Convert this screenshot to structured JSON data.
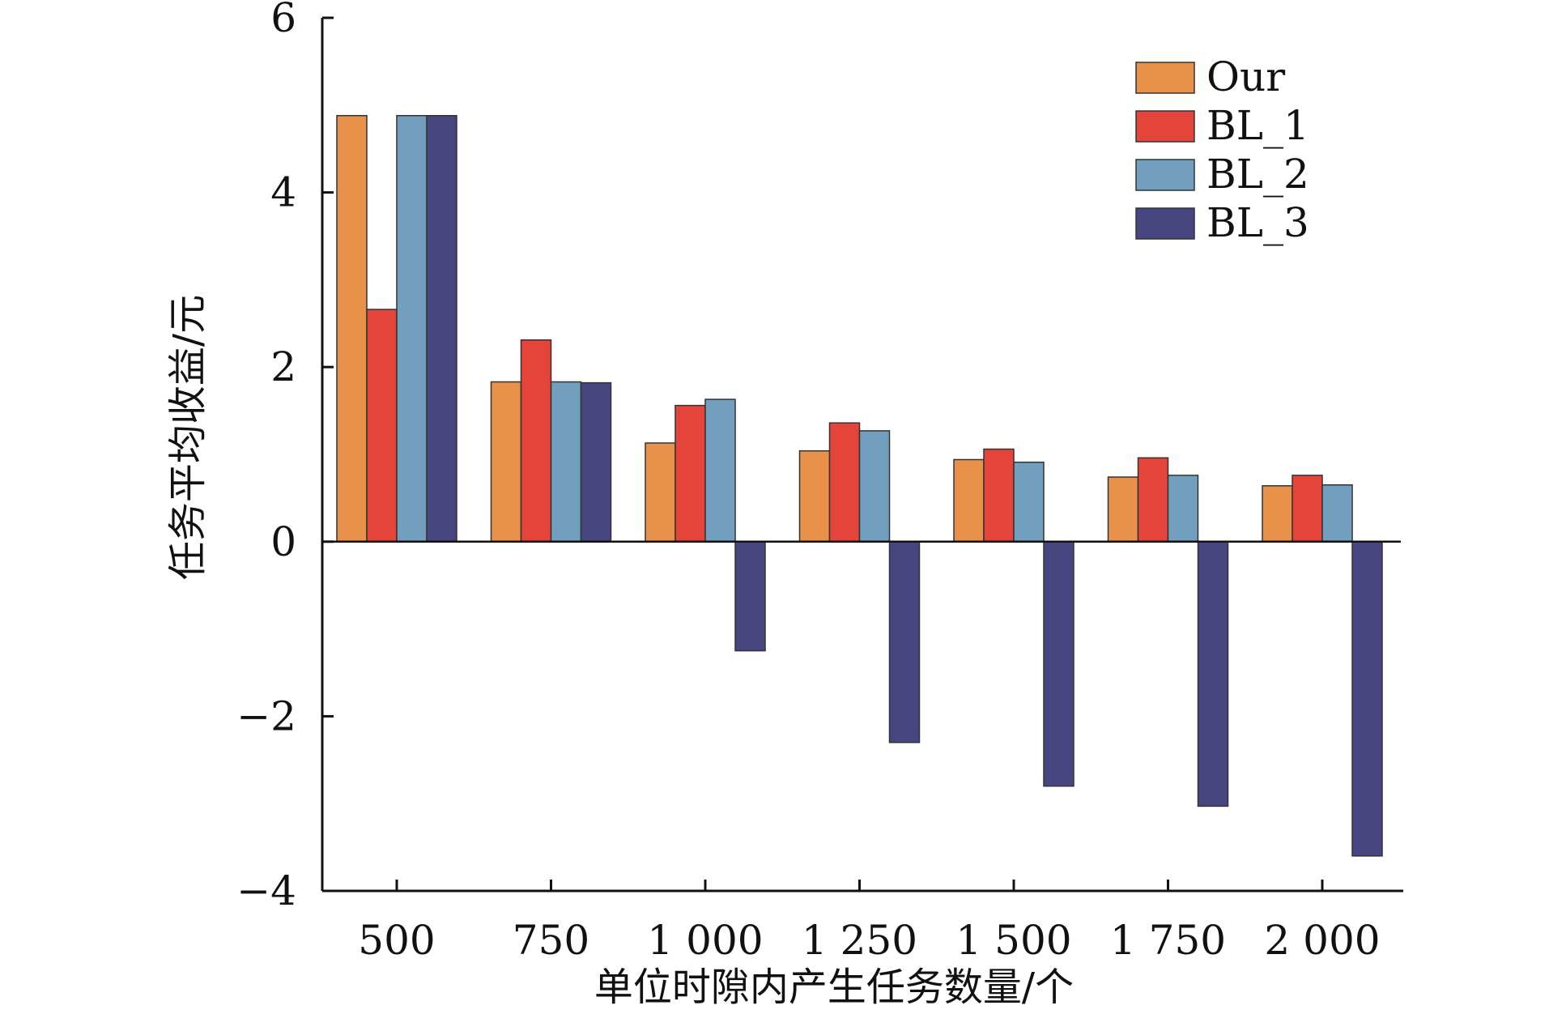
{
  "chart_data": {
    "type": "bar",
    "xlabel": "单位时隙内产生任务数量/个",
    "ylabel": "任务平均收益/元",
    "categories": [
      "500",
      "750",
      "1 000",
      "1 250",
      "1 500",
      "1 750",
      "2 000"
    ],
    "ylim": [
      -4,
      6
    ],
    "yticks": [
      "−4",
      "−2",
      "0",
      "2",
      "4",
      "6"
    ],
    "grid": false,
    "legend_position": "top-right",
    "series": [
      {
        "name": "Our",
        "color": "#E8914A",
        "values": [
          4.88,
          1.83,
          1.13,
          1.04,
          0.94,
          0.74,
          0.64
        ]
      },
      {
        "name": "BL_1",
        "color": "#E5443A",
        "values": [
          2.66,
          2.31,
          1.56,
          1.36,
          1.06,
          0.96,
          0.76
        ]
      },
      {
        "name": "BL_2",
        "color": "#719FBD",
        "values": [
          4.88,
          1.83,
          1.63,
          1.27,
          0.91,
          0.76,
          0.65
        ]
      },
      {
        "name": "BL_3",
        "color": "#474681",
        "values": [
          4.88,
          1.82,
          -1.25,
          -2.3,
          -2.8,
          -3.03,
          -3.6
        ]
      }
    ]
  }
}
